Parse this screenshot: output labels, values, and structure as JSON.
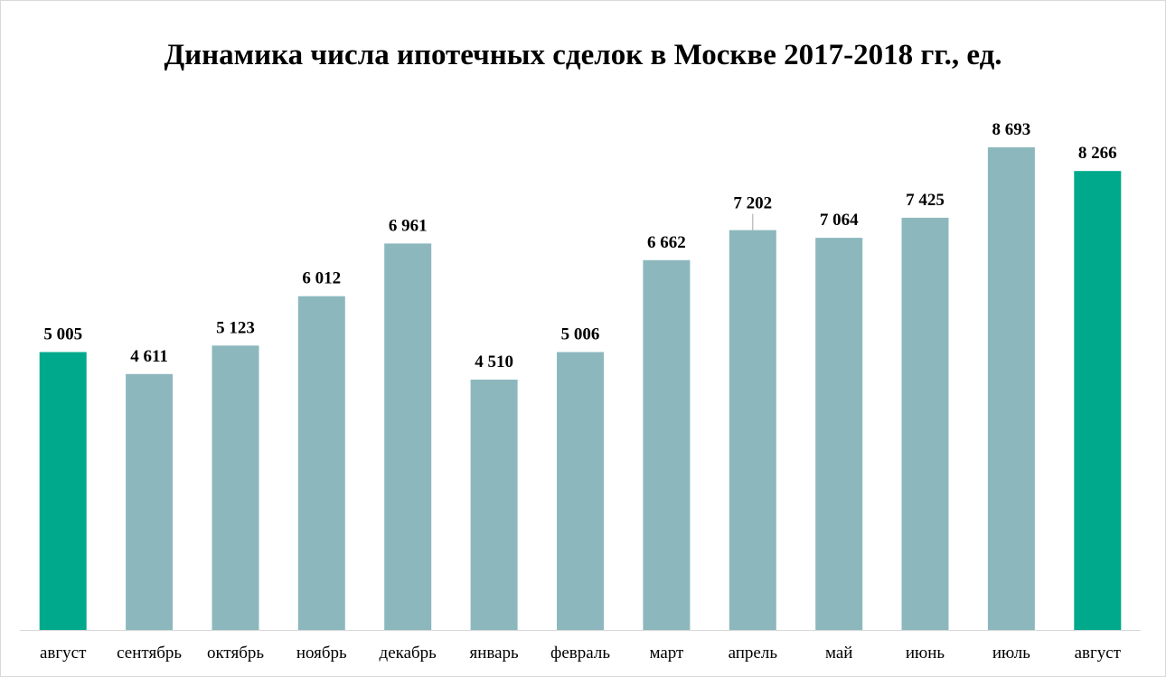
{
  "chart_data": {
    "type": "bar",
    "title": "Динамика числа ипотечных сделок в Москве 2017-2018 гг., ед.",
    "xlabel": "",
    "ylabel": "",
    "categories": [
      "август",
      "сентябрь",
      "октябрь",
      "ноябрь",
      "декабрь",
      "январь",
      "февраль",
      "март",
      "апрель",
      "май",
      "июнь",
      "июль",
      "август"
    ],
    "values": [
      5005,
      4611,
      5123,
      6012,
      6961,
      4510,
      5006,
      6662,
      7202,
      7064,
      7425,
      8693,
      8266
    ],
    "value_labels": [
      "5 005",
      "4 611",
      "5 123",
      "6 012",
      "6 961",
      "4 510",
      "5 006",
      "6 662",
      "7 202",
      "7 064",
      "7 425",
      "8 693",
      "8 266"
    ],
    "highlighted": [
      0,
      12
    ],
    "colors": {
      "bar": "#8cb8bd",
      "highlight": "#00a98b",
      "axis": "#d9d9d9"
    },
    "ylim": [
      0,
      9000
    ],
    "grid": false,
    "legend": "none"
  }
}
